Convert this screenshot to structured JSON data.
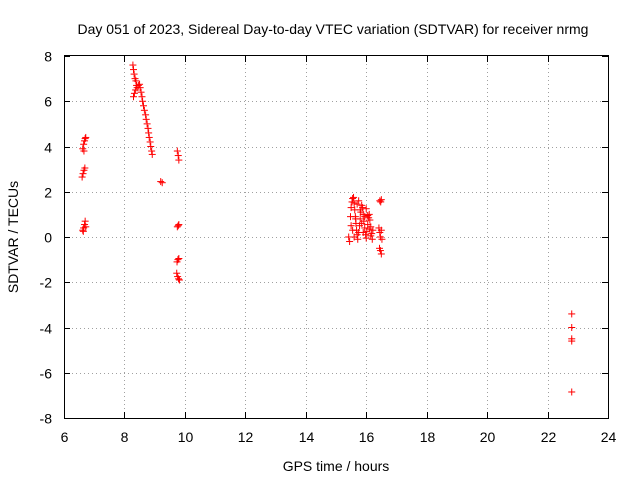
{
  "chart_data": {
    "type": "scatter",
    "title": "Day 051 of 2023, Sidereal Day-to-day VTEC variation (SDTVAR) for receiver nrmg",
    "xlabel": "GPS time / hours",
    "ylabel": "SDTVAR / TECUs",
    "xlim": [
      6,
      24
    ],
    "ylim": [
      -8,
      8
    ],
    "xticks": [
      6,
      8,
      10,
      12,
      14,
      16,
      18,
      20,
      22,
      24
    ],
    "yticks": [
      -8,
      -6,
      -4,
      -2,
      0,
      2,
      4,
      6,
      8
    ],
    "grid": true,
    "marker": "+",
    "color": "#ff0000",
    "series": [
      {
        "name": "SDTVAR",
        "points": [
          [
            6.62,
            3.9
          ],
          [
            6.65,
            4.1
          ],
          [
            6.68,
            4.25
          ],
          [
            6.7,
            4.35
          ],
          [
            6.66,
            3.8
          ],
          [
            6.72,
            4.4
          ],
          [
            6.6,
            2.65
          ],
          [
            6.63,
            2.8
          ],
          [
            6.66,
            2.95
          ],
          [
            6.69,
            3.05
          ],
          [
            6.62,
            0.3
          ],
          [
            6.65,
            0.4
          ],
          [
            6.68,
            0.55
          ],
          [
            6.7,
            0.7
          ],
          [
            6.64,
            0.25
          ],
          [
            6.72,
            0.45
          ],
          [
            8.28,
            7.6
          ],
          [
            8.3,
            7.4
          ],
          [
            8.32,
            7.2
          ],
          [
            8.35,
            7.0
          ],
          [
            8.38,
            6.9
          ],
          [
            8.4,
            6.7
          ],
          [
            8.3,
            6.2
          ],
          [
            8.33,
            6.35
          ],
          [
            8.37,
            6.5
          ],
          [
            8.42,
            6.6
          ],
          [
            8.46,
            6.7
          ],
          [
            8.5,
            6.75
          ],
          [
            8.52,
            6.6
          ],
          [
            8.55,
            6.4
          ],
          [
            8.58,
            6.2
          ],
          [
            8.6,
            6.0
          ],
          [
            8.63,
            5.8
          ],
          [
            8.66,
            5.6
          ],
          [
            8.7,
            5.4
          ],
          [
            8.72,
            5.2
          ],
          [
            8.75,
            5.0
          ],
          [
            8.78,
            4.8
          ],
          [
            8.8,
            4.6
          ],
          [
            8.82,
            4.4
          ],
          [
            8.85,
            4.2
          ],
          [
            8.87,
            4.0
          ],
          [
            8.9,
            3.8
          ],
          [
            8.92,
            3.65
          ],
          [
            9.2,
            2.45
          ],
          [
            9.25,
            2.4
          ],
          [
            9.75,
            3.8
          ],
          [
            9.78,
            3.6
          ],
          [
            9.8,
            3.4
          ],
          [
            9.75,
            0.45
          ],
          [
            9.78,
            0.5
          ],
          [
            9.8,
            0.55
          ],
          [
            9.74,
            -1.1
          ],
          [
            9.77,
            -1.0
          ],
          [
            9.8,
            -0.95
          ],
          [
            9.73,
            -1.6
          ],
          [
            9.76,
            -1.75
          ],
          [
            9.79,
            -1.85
          ],
          [
            9.82,
            -1.9
          ],
          [
            15.42,
            0.0
          ],
          [
            15.45,
            -0.2
          ],
          [
            15.48,
            0.9
          ],
          [
            15.5,
            1.3
          ],
          [
            15.53,
            1.55
          ],
          [
            15.55,
            1.7
          ],
          [
            15.58,
            1.75
          ],
          [
            15.6,
            1.5
          ],
          [
            15.62,
            1.2
          ],
          [
            15.64,
            0.9
          ],
          [
            15.66,
            0.6
          ],
          [
            15.68,
            0.3
          ],
          [
            15.7,
            0.1
          ],
          [
            15.72,
            -0.1
          ],
          [
            15.75,
            0.2
          ],
          [
            15.78,
            0.5
          ],
          [
            15.8,
            0.8
          ],
          [
            15.82,
            1.1
          ],
          [
            15.85,
            1.4
          ],
          [
            15.88,
            1.3
          ],
          [
            15.9,
            1.0
          ],
          [
            15.92,
            0.7
          ],
          [
            15.95,
            0.4
          ],
          [
            15.98,
            0.1
          ],
          [
            16.0,
            -0.05
          ],
          [
            16.02,
            0.25
          ],
          [
            16.05,
            0.55
          ],
          [
            16.08,
            0.85
          ],
          [
            16.1,
            1.0
          ],
          [
            16.12,
            0.75
          ],
          [
            16.15,
            0.45
          ],
          [
            16.18,
            0.15
          ],
          [
            16.2,
            -0.1
          ],
          [
            16.22,
            0.3
          ],
          [
            15.5,
            0.5
          ],
          [
            15.55,
            0.3
          ],
          [
            15.6,
            0.0
          ],
          [
            15.65,
            0.8
          ],
          [
            15.7,
            1.45
          ],
          [
            15.75,
            1.6
          ],
          [
            15.8,
            1.2
          ],
          [
            15.85,
            0.6
          ],
          [
            15.9,
            0.2
          ],
          [
            15.95,
            0.9
          ],
          [
            16.0,
            1.25
          ],
          [
            16.05,
            0.95
          ],
          [
            16.1,
            0.35
          ],
          [
            16.15,
            0.05
          ],
          [
            16.45,
            1.6
          ],
          [
            16.48,
            1.55
          ],
          [
            16.5,
            1.65
          ],
          [
            16.42,
            0.4
          ],
          [
            16.45,
            0.2
          ],
          [
            16.47,
            0.0
          ],
          [
            16.5,
            0.3
          ],
          [
            16.52,
            -0.1
          ],
          [
            16.44,
            -0.5
          ],
          [
            16.47,
            -0.6
          ],
          [
            16.5,
            -0.75
          ],
          [
            22.8,
            -3.4
          ],
          [
            22.8,
            -4.0
          ],
          [
            22.8,
            -4.5
          ],
          [
            22.8,
            -4.6
          ],
          [
            22.8,
            -6.85
          ]
        ]
      }
    ]
  }
}
